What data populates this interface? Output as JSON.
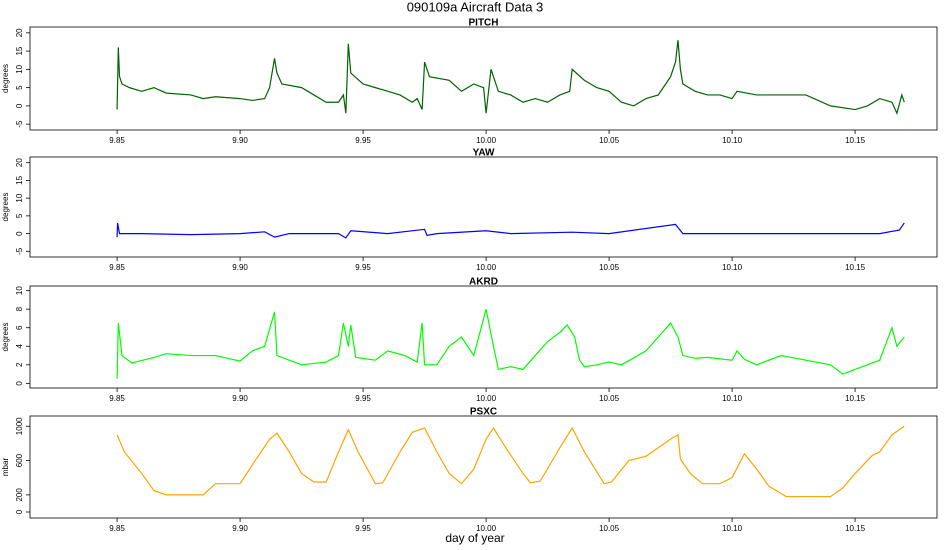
{
  "title": "090109a   Aircraft Data 3",
  "xlabel": "day of year",
  "chart_data": [
    {
      "type": "line",
      "title": "PITCH",
      "ylabel": "degrees",
      "color": "#006400",
      "xlim": [
        9.8146,
        10.1833
      ],
      "ylim": [
        -6.6,
        21.6
      ],
      "xticks": [
        9.85,
        {
          "value": 9.9,
          "label": "9.90"
        },
        9.95,
        {
          "value": 10.0,
          "label": "10.00"
        },
        10.05,
        {
          "value": 10.1,
          "label": "10.10"
        },
        10.15
      ],
      "yticks": [
        -5,
        0,
        5,
        10,
        15,
        20
      ],
      "x": [
        9.85,
        9.8505,
        9.851,
        9.852,
        9.855,
        9.86,
        9.865,
        9.87,
        9.88,
        9.885,
        9.89,
        9.9,
        9.905,
        9.91,
        9.912,
        9.914,
        9.915,
        9.917,
        9.925,
        9.93,
        9.935,
        9.94,
        9.942,
        9.943,
        9.944,
        9.945,
        9.95,
        9.955,
        9.965,
        9.97,
        9.972,
        9.974,
        9.975,
        9.977,
        9.985,
        9.99,
        9.995,
        9.999,
        10.0,
        10.002,
        10.005,
        10.01,
        10.015,
        10.02,
        10.025,
        10.03,
        10.034,
        10.035,
        10.04,
        10.045,
        10.05,
        10.055,
        10.06,
        10.065,
        10.07,
        10.075,
        10.077,
        10.078,
        10.079,
        10.08,
        10.085,
        10.09,
        10.095,
        10.1,
        10.102,
        10.11,
        10.12,
        10.13,
        10.14,
        10.15,
        10.155,
        10.16,
        10.165,
        10.167,
        10.169,
        10.17
      ],
      "values": [
        -1,
        16,
        8,
        6,
        5,
        4,
        5,
        3.5,
        3,
        2,
        2.5,
        2,
        1.5,
        2,
        5,
        13,
        9,
        6,
        5,
        3,
        1,
        1,
        3,
        -2,
        17,
        9,
        6,
        5,
        3,
        1,
        2,
        -1,
        12,
        8,
        7,
        4,
        6,
        5,
        -2,
        10,
        4,
        3,
        1,
        2,
        1,
        3,
        4,
        10,
        7,
        5,
        4,
        1,
        0,
        2,
        3,
        8,
        12,
        18,
        10,
        6,
        4,
        3,
        3,
        2,
        4,
        3,
        3,
        3,
        0,
        -1,
        0,
        2,
        1,
        -2,
        3,
        1
      ]
    },
    {
      "type": "line",
      "title": "YAW",
      "ylabel": "degrees",
      "color": "#0000ff",
      "xlim": [
        9.8146,
        10.1833
      ],
      "ylim": [
        -6.6,
        21.6
      ],
      "xticks": [
        9.85,
        {
          "value": 9.9,
          "label": "9.90"
        },
        9.95,
        {
          "value": 10.0,
          "label": "10.00"
        },
        10.05,
        {
          "value": 10.1,
          "label": "10.10"
        },
        10.15
      ],
      "yticks": [
        -5,
        0,
        5,
        10,
        15,
        20
      ],
      "x": [
        9.85,
        9.8502,
        9.851,
        9.86,
        9.88,
        9.9,
        9.91,
        9.914,
        9.92,
        9.94,
        9.943,
        9.945,
        9.96,
        9.975,
        9.976,
        9.98,
        10.0,
        10.01,
        10.035,
        10.05,
        10.077,
        10.08,
        10.1,
        10.13,
        10.16,
        10.168,
        10.17
      ],
      "values": [
        -1,
        3,
        0,
        0,
        -0.3,
        0,
        0.5,
        -1,
        0,
        0,
        -1.2,
        0.8,
        0,
        1.2,
        -0.5,
        0,
        0.8,
        0,
        0.4,
        0,
        2.6,
        0,
        0,
        0,
        0,
        1,
        3
      ]
    },
    {
      "type": "line",
      "title": "AKRD",
      "ylabel": "degrees",
      "color": "#00ff00",
      "xlim": [
        9.8146,
        10.1833
      ],
      "ylim": [
        -0.5,
        10.5
      ],
      "xticks": [
        9.85,
        {
          "value": 9.9,
          "label": "9.90"
        },
        9.95,
        {
          "value": 10.0,
          "label": "10.00"
        },
        10.05,
        {
          "value": 10.1,
          "label": "10.10"
        },
        10.15
      ],
      "yticks": [
        0,
        2,
        4,
        6,
        8,
        10
      ],
      "x": [
        9.85,
        9.8505,
        9.852,
        9.856,
        9.865,
        9.87,
        9.88,
        9.89,
        9.9,
        9.905,
        9.91,
        9.914,
        9.915,
        9.92,
        9.925,
        9.935,
        9.94,
        9.942,
        9.944,
        9.945,
        9.947,
        9.955,
        9.96,
        9.967,
        9.972,
        9.974,
        9.975,
        9.98,
        9.985,
        9.99,
        9.995,
        9.998,
        10.0,
        10.003,
        10.005,
        10.01,
        10.015,
        10.02,
        10.025,
        10.03,
        10.033,
        10.036,
        10.038,
        10.04,
        10.045,
        10.05,
        10.055,
        10.065,
        10.07,
        10.075,
        10.078,
        10.08,
        10.085,
        10.09,
        10.1,
        10.102,
        10.105,
        10.11,
        10.12,
        10.13,
        10.14,
        10.145,
        10.15,
        10.16,
        10.165,
        10.167,
        10.17
      ],
      "values": [
        0.5,
        6.5,
        3,
        2.2,
        2.8,
        3.2,
        3,
        3,
        2.4,
        3.5,
        4,
        7.7,
        3,
        2.5,
        2,
        2.3,
        3,
        6.5,
        4,
        6.3,
        2.8,
        2.5,
        3.5,
        3,
        2.3,
        6.5,
        2,
        2,
        4,
        5,
        3,
        6,
        8,
        4,
        1.5,
        1.8,
        1.5,
        3,
        4.5,
        5.5,
        6.3,
        5,
        2.5,
        1.8,
        2,
        2.3,
        2,
        3.5,
        5,
        6.5,
        5,
        3,
        2.7,
        2.8,
        2.5,
        3.5,
        2.6,
        2,
        3,
        2.5,
        2,
        1,
        1.5,
        2.5,
        6,
        4,
        5
      ]
    },
    {
      "type": "line",
      "title": "PSXC",
      "ylabel": "mbar",
      "color": "#ffa500",
      "xlim": [
        9.8146,
        10.1833
      ],
      "ylim": [
        -70,
        1120
      ],
      "xticks": [
        9.85,
        {
          "value": 9.9,
          "label": "9.90"
        },
        9.95,
        {
          "value": 10.0,
          "label": "10.00"
        },
        10.05,
        {
          "value": 10.1,
          "label": "10.10"
        },
        10.15
      ],
      "yticks": [
        0,
        200,
        600,
        1000
      ],
      "x": [
        9.85,
        9.853,
        9.86,
        9.865,
        9.87,
        9.885,
        9.89,
        9.9,
        9.905,
        9.912,
        9.915,
        9.92,
        9.925,
        9.93,
        9.935,
        9.94,
        9.944,
        9.948,
        9.955,
        9.958,
        9.965,
        9.97,
        9.975,
        9.98,
        9.985,
        9.99,
        9.995,
        10.0,
        10.003,
        10.008,
        10.015,
        10.018,
        10.022,
        10.03,
        10.035,
        10.04,
        10.048,
        10.051,
        10.058,
        10.065,
        10.07,
        10.075,
        10.078,
        10.079,
        10.083,
        10.088,
        10.095,
        10.1,
        10.105,
        10.11,
        10.115,
        10.122,
        10.14,
        10.145,
        10.15,
        10.157,
        10.16,
        10.165,
        10.17
      ],
      "values": [
        900,
        700,
        450,
        250,
        200,
        200,
        330,
        330,
        550,
        850,
        920,
        700,
        450,
        350,
        350,
        700,
        960,
        700,
        330,
        340,
        700,
        930,
        980,
        700,
        450,
        330,
        500,
        850,
        980,
        750,
        450,
        340,
        360,
        750,
        980,
        700,
        330,
        350,
        600,
        650,
        750,
        850,
        900,
        620,
        450,
        330,
        330,
        400,
        680,
        500,
        300,
        180,
        180,
        280,
        450,
        660,
        700,
        900,
        1000
      ]
    }
  ]
}
